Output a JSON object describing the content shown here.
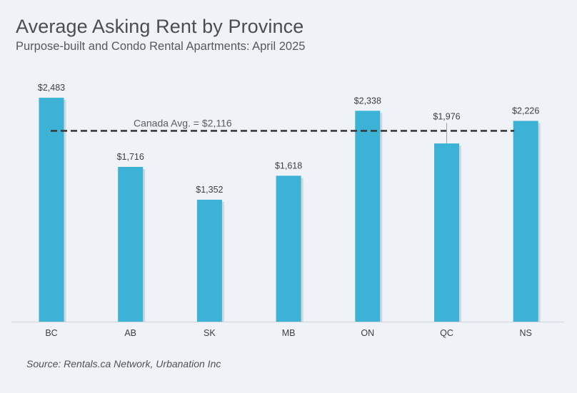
{
  "title": "Average Asking Rent by Province",
  "subtitle": "Purpose-built and Condo Rental Apartments: April 2025",
  "source": "Source: Rentals.ca Network, Urbanation Inc",
  "colors": {
    "bar": "#3cb3d6",
    "bar_shadow": "#c9ced6",
    "avg_line": "#3a3a3a",
    "text": "#3d3f42",
    "axis": "#cfd3da"
  },
  "chart_data": {
    "type": "bar",
    "categories": [
      "BC",
      "AB",
      "SK",
      "MB",
      "ON",
      "QC",
      "NS"
    ],
    "values": [
      2483,
      1716,
      1352,
      1618,
      2338,
      1976,
      2226
    ],
    "value_labels": [
      "$2,483",
      "$1,716",
      "$1,352",
      "$1,618",
      "$2,338",
      "$1,976",
      "$2,226"
    ],
    "title": "Average Asking Rent by Province",
    "subtitle": "Purpose-built and Condo Rental Apartments: April 2025",
    "reference_line": {
      "value": 2116,
      "label": "Canada Avg. = $2,116",
      "style": "dashed"
    },
    "ylim": [
      0,
      2483
    ],
    "grid": false,
    "legend": "none"
  }
}
